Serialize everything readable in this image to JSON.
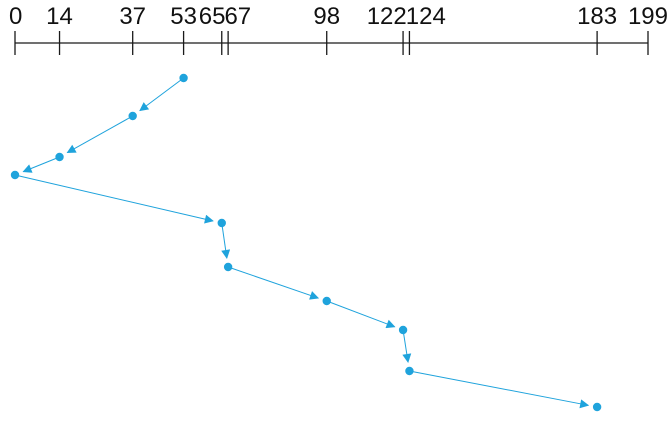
{
  "colors": {
    "path": "#1fa3dc",
    "axis": "#1a1a1a"
  },
  "diagram": {
    "axis_min": 0,
    "axis_max": 199,
    "tick_values": [
      0,
      14,
      37,
      53,
      65,
      67,
      98,
      122,
      124,
      183,
      199
    ],
    "tick_labels": [
      "0",
      "14",
      "37",
      "53",
      "65",
      "67",
      "98",
      "122",
      "124",
      "183",
      "199"
    ],
    "service_order": [
      53,
      37,
      14,
      0,
      65,
      67,
      98,
      122,
      124,
      183
    ]
  }
}
